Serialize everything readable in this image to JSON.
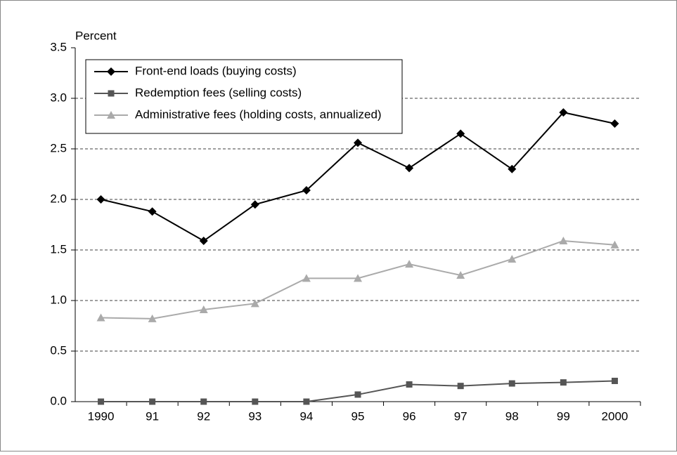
{
  "chart_data": {
    "type": "line",
    "y_label": "Percent",
    "categories": [
      "1990",
      "91",
      "92",
      "93",
      "94",
      "95",
      "96",
      "97",
      "98",
      "99",
      "2000"
    ],
    "series": [
      {
        "name": "Front-end loads (buying costs)",
        "color": "#000000",
        "marker": "diamond",
        "values": [
          2.0,
          1.88,
          1.59,
          1.95,
          2.09,
          2.56,
          2.31,
          2.65,
          2.3,
          2.86,
          2.75
        ]
      },
      {
        "name": "Redemption fees (selling costs)",
        "color": "#555555",
        "marker": "square",
        "values": [
          0,
          0,
          0,
          0,
          0,
          0.07,
          0.17,
          0.155,
          0.18,
          0.19,
          0.205
        ]
      },
      {
        "name": "Administrative fees (holding costs, annualized)",
        "color": "#aaaaaa",
        "marker": "triangle",
        "values": [
          0.83,
          0.82,
          0.91,
          0.97,
          1.22,
          1.22,
          1.36,
          1.25,
          1.41,
          1.59,
          1.55
        ]
      }
    ],
    "ylim": [
      0,
      3.5
    ],
    "yticks": [
      {
        "value": 0,
        "label": "0.0"
      },
      0.5,
      {
        "value": 1,
        "label": "1.0"
      },
      1.5,
      {
        "value": 2,
        "label": "2.0"
      },
      2.5,
      {
        "value": 3,
        "label": "3.0"
      },
      3.5
    ],
    "grid": true,
    "legend": "top-left"
  }
}
